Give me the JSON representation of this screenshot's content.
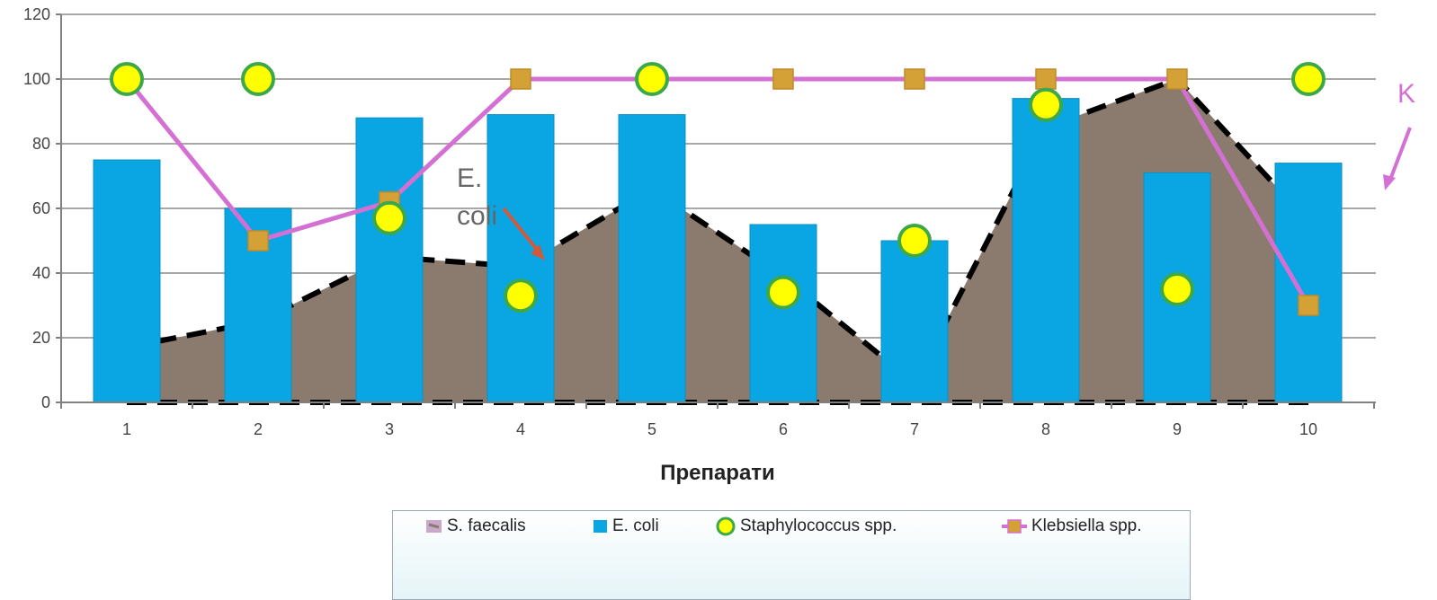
{
  "chart_data": {
    "type": "bar",
    "title": "",
    "xlabel": "Препарати",
    "ylabel": "",
    "ylim": [
      0,
      120
    ],
    "yticks": [
      "0",
      "20",
      "40",
      "60",
      "80",
      "100",
      "120"
    ],
    "categories": [
      "1",
      "2",
      "3",
      "4",
      "5",
      "6",
      "7",
      "8",
      "9",
      "10"
    ],
    "grid": true,
    "legend_position": "bottom",
    "series": [
      {
        "name": "S. faecalis",
        "type": "area",
        "color": "#8b7b6e",
        "values": [
          17,
          25,
          45,
          42,
          66,
          39,
          6,
          85,
          100,
          56
        ]
      },
      {
        "name": "E. coli",
        "type": "bar",
        "color": "#0aa5e3",
        "values": [
          75,
          60,
          88,
          89,
          89,
          55,
          50,
          94,
          71,
          74
        ]
      },
      {
        "name": "Staphylococcus spp.",
        "type": "scatter",
        "color": "#ffff00",
        "edge_color": "#3ca84a",
        "points": [
          {
            "x": 0.5,
            "y": 100
          },
          {
            "x": 1.5,
            "y": 100
          },
          {
            "x": 2.5,
            "y": 57
          },
          {
            "x": 3.5,
            "y": 33
          },
          {
            "x": 4.5,
            "y": 100
          },
          {
            "x": 5.5,
            "y": 34
          },
          {
            "x": 6.5,
            "y": 50
          },
          {
            "x": 7.5,
            "y": 92
          },
          {
            "x": 8.5,
            "y": 35
          },
          {
            "x": 9.5,
            "y": 100
          }
        ]
      },
      {
        "name": "Klebsiella spp.",
        "type": "line",
        "color": "#d470d4",
        "marker_color": "#d4a137",
        "values": [
          100,
          50,
          62,
          100,
          100,
          100,
          100,
          100,
          100,
          30
        ]
      }
    ],
    "annotations": [
      {
        "text_lines": [
          "E.",
          "coli"
        ],
        "arrow_color": "#d05a3c"
      },
      {
        "text_lines": [
          "K"
        ],
        "arrow_color": "#d470d4"
      }
    ]
  }
}
